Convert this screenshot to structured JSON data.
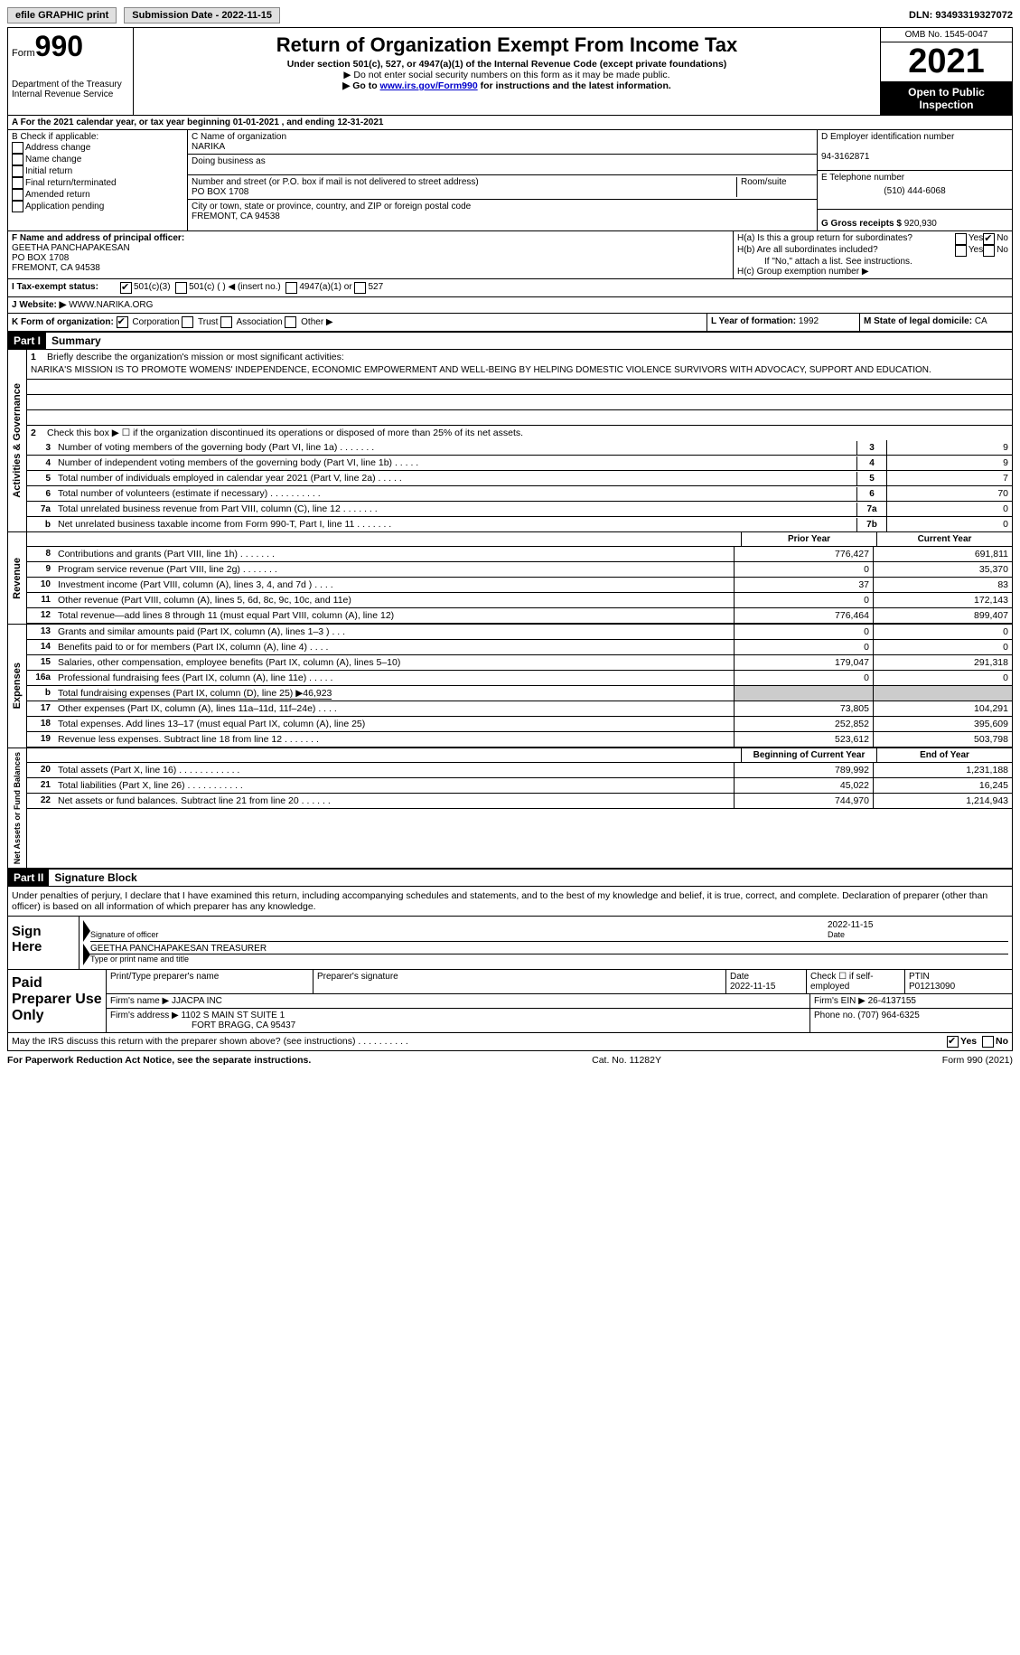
{
  "meta": {
    "efile_label": "efile GRAPHIC print",
    "submission_label": "Submission Date - 2022-11-15",
    "dln_label": "DLN: 93493319327072",
    "cat_no": "Cat. No. 11282Y",
    "form_footer": "Form 990 (2021)"
  },
  "header": {
    "form_label": "Form",
    "form_number": "990",
    "dept": "Department of the Treasury\nInternal Revenue Service",
    "title": "Return of Organization Exempt From Income Tax",
    "subtitle": "Under section 501(c), 527, or 4947(a)(1) of the Internal Revenue Code (except private foundations)",
    "note1": "▶ Do not enter social security numbers on this form as it may be made public.",
    "note2_pre": "▶ Go to ",
    "note2_link": "www.irs.gov/Form990",
    "note2_post": " for instructions and the latest information.",
    "omb": "OMB No. 1545-0047",
    "year": "2021",
    "open": "Open to Public Inspection"
  },
  "line_a": "A For the 2021 calendar year, or tax year beginning 01-01-2021    , and ending 12-31-2021",
  "section_b": {
    "label": "B Check if applicable:",
    "opts": [
      "Address change",
      "Name change",
      "Initial return",
      "Final return/terminated",
      "Amended return",
      "Application pending"
    ]
  },
  "section_c": {
    "name_label": "C Name of organization",
    "name": "NARIKA",
    "dba_label": "Doing business as",
    "addr_label": "Number and street (or P.O. box if mail is not delivered to street address)",
    "room_label": "Room/suite",
    "addr": "PO BOX 1708",
    "city_label": "City or town, state or province, country, and ZIP or foreign postal code",
    "city": "FREMONT, CA  94538"
  },
  "section_d": {
    "ein_label": "D Employer identification number",
    "ein": "94-3162871",
    "phone_label": "E Telephone number",
    "phone": "(510) 444-6068",
    "gross_label": "G Gross receipts $",
    "gross": "920,930"
  },
  "section_f": {
    "label": "F Name and address of principal officer:",
    "name": "GEETHA PANCHAPAKESAN",
    "addr1": "PO BOX 1708",
    "addr2": "FREMONT, CA  94538"
  },
  "section_h": {
    "ha": "H(a)  Is this a group return for subordinates?",
    "hb": "H(b)  Are all subordinates included?",
    "hb_note": "If \"No,\" attach a list. See instructions.",
    "hc": "H(c)  Group exemption number ▶",
    "yes": "Yes",
    "no": "No"
  },
  "section_i": {
    "label": "I  Tax-exempt status:",
    "opts": [
      "501(c)(3)",
      "501(c) (  ) ◀ (insert no.)",
      "4947(a)(1) or",
      "527"
    ]
  },
  "section_j": {
    "label": "J  Website: ▶",
    "val": "WWW.NARIKA.ORG"
  },
  "section_k": {
    "label": "K Form of organization:",
    "opts": [
      "Corporation",
      "Trust",
      "Association",
      "Other ▶"
    ]
  },
  "section_l": {
    "label": "L Year of formation:",
    "val": "1992"
  },
  "section_m": {
    "label": "M State of legal domicile:",
    "val": "CA"
  },
  "part1": {
    "hdr": "Part I",
    "title": "Summary",
    "q1_label": "1",
    "q1": "Briefly describe the organization's mission or most significant activities:",
    "mission": "NARIKA'S MISSION IS TO PROMOTE WOMENS' INDEPENDENCE, ECONOMIC EMPOWERMENT AND WELL-BEING BY HELPING DOMESTIC VIOLENCE SURVIVORS WITH ADVOCACY, SUPPORT AND EDUCATION.",
    "q2": "Check this box ▶ ☐ if the organization discontinued its operations or disposed of more than 25% of its net assets.",
    "vlabel1": "Activities & Governance",
    "vlabel2": "Revenue",
    "vlabel3": "Expenses",
    "vlabel4": "Net Assets or Fund Balances",
    "lines_gov": [
      {
        "n": "3",
        "d": "Number of voting members of the governing body (Part VI, line 1a)   .   .   .   .   .   .   .",
        "b": "3",
        "v": "9"
      },
      {
        "n": "4",
        "d": "Number of independent voting members of the governing body (Part VI, line 1b)   .   .   .   .   .",
        "b": "4",
        "v": "9"
      },
      {
        "n": "5",
        "d": "Total number of individuals employed in calendar year 2021 (Part V, line 2a)   .   .   .   .   .",
        "b": "5",
        "v": "7"
      },
      {
        "n": "6",
        "d": "Total number of volunteers (estimate if necessary)   .   .   .   .   .   .   .   .   .   .",
        "b": "6",
        "v": "70"
      },
      {
        "n": "7a",
        "d": "Total unrelated business revenue from Part VIII, column (C), line 12   .   .   .   .   .   .   .",
        "b": "7a",
        "v": "0"
      },
      {
        "n": "b",
        "d": "Net unrelated business taxable income from Form 990-T, Part I, line 11   .   .   .   .   .   .   .",
        "b": "7b",
        "v": "0"
      }
    ],
    "prior_year": "Prior Year",
    "current_year": "Current Year",
    "lines_rev": [
      {
        "n": "8",
        "d": "Contributions and grants (Part VIII, line 1h)   .   .   .   .   .   .   .",
        "v1": "776,427",
        "v2": "691,811"
      },
      {
        "n": "9",
        "d": "Program service revenue (Part VIII, line 2g)   .   .   .   .   .   .   .",
        "v1": "0",
        "v2": "35,370"
      },
      {
        "n": "10",
        "d": "Investment income (Part VIII, column (A), lines 3, 4, and 7d )   .   .   .   .",
        "v1": "37",
        "v2": "83"
      },
      {
        "n": "11",
        "d": "Other revenue (Part VIII, column (A), lines 5, 6d, 8c, 9c, 10c, and 11e)",
        "v1": "0",
        "v2": "172,143"
      },
      {
        "n": "12",
        "d": "Total revenue—add lines 8 through 11 (must equal Part VIII, column (A), line 12)",
        "v1": "776,464",
        "v2": "899,407"
      }
    ],
    "lines_exp": [
      {
        "n": "13",
        "d": "Grants and similar amounts paid (Part IX, column (A), lines 1–3 )   .   .   .",
        "v1": "0",
        "v2": "0"
      },
      {
        "n": "14",
        "d": "Benefits paid to or for members (Part IX, column (A), line 4)   .   .   .   .",
        "v1": "0",
        "v2": "0"
      },
      {
        "n": "15",
        "d": "Salaries, other compensation, employee benefits (Part IX, column (A), lines 5–10)",
        "v1": "179,047",
        "v2": "291,318"
      },
      {
        "n": "16a",
        "d": "Professional fundraising fees (Part IX, column (A), line 11e)   .   .   .   .   .",
        "v1": "0",
        "v2": "0"
      }
    ],
    "line16b": {
      "n": "b",
      "d": "Total fundraising expenses (Part IX, column (D), line 25) ▶46,923"
    },
    "lines_exp2": [
      {
        "n": "17",
        "d": "Other expenses (Part IX, column (A), lines 11a–11d, 11f–24e)   .   .   .   .",
        "v1": "73,805",
        "v2": "104,291"
      },
      {
        "n": "18",
        "d": "Total expenses. Add lines 13–17 (must equal Part IX, column (A), line 25)",
        "v1": "252,852",
        "v2": "395,609"
      },
      {
        "n": "19",
        "d": "Revenue less expenses. Subtract line 18 from line 12   .   .   .   .   .   .   .",
        "v1": "523,612",
        "v2": "503,798"
      }
    ],
    "begin_year": "Beginning of Current Year",
    "end_year": "End of Year",
    "lines_net": [
      {
        "n": "20",
        "d": "Total assets (Part X, line 16)   .   .   .   .   .   .   .   .   .   .   .   .",
        "v1": "789,992",
        "v2": "1,231,188"
      },
      {
        "n": "21",
        "d": "Total liabilities (Part X, line 26)   .   .   .   .   .   .   .   .   .   .   .",
        "v1": "45,022",
        "v2": "16,245"
      },
      {
        "n": "22",
        "d": "Net assets or fund balances. Subtract line 21 from line 20   .   .   .   .   .   .",
        "v1": "744,970",
        "v2": "1,214,943"
      }
    ]
  },
  "part2": {
    "hdr": "Part II",
    "title": "Signature Block",
    "decl": "Under penalties of perjury, I declare that I have examined this return, including accompanying schedules and statements, and to the best of my knowledge and belief, it is true, correct, and complete. Declaration of preparer (other than officer) is based on all information of which preparer has any knowledge.",
    "sign_here": "Sign Here",
    "sig_officer": "Signature of officer",
    "sig_date": "2022-11-15",
    "sig_date_label": "Date",
    "officer_name": "GEETHA PANCHAPAKESAN  TREASURER",
    "type_name": "Type or print name and title",
    "paid_prep": "Paid Preparer Use Only",
    "prep_name_label": "Print/Type preparer's name",
    "prep_sig_label": "Preparer's signature",
    "date_label": "Date",
    "date_val": "2022-11-15",
    "check_label": "Check ☐ if self-employed",
    "ptin_label": "PTIN",
    "ptin": "P01213090",
    "firm_name_label": "Firm's name    ▶",
    "firm_name": "JJACPA INC",
    "firm_ein_label": "Firm's EIN ▶",
    "firm_ein": "26-4137155",
    "firm_addr_label": "Firm's address ▶",
    "firm_addr1": "1102 S MAIN ST SUITE 1",
    "firm_addr2": "FORT BRAGG, CA  95437",
    "firm_phone_label": "Phone no.",
    "firm_phone": "(707) 964-6325",
    "may_irs": "May the IRS discuss this return with the preparer shown above? (see instructions)   .   .   .   .   .   .   .   .   .   .",
    "paperwork": "For Paperwork Reduction Act Notice, see the separate instructions."
  }
}
